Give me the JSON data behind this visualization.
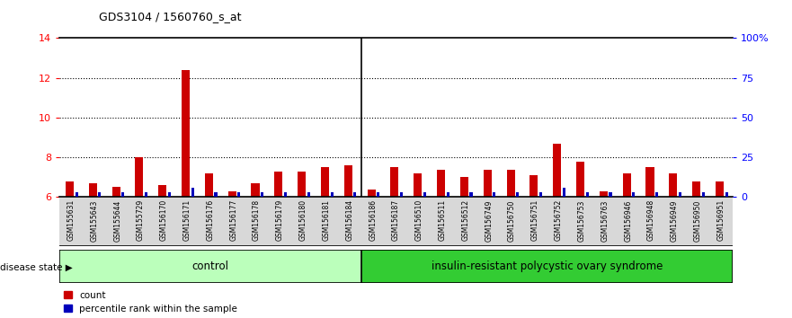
{
  "title": "GDS3104 / 1560760_s_at",
  "samples": [
    "GSM155631",
    "GSM155643",
    "GSM155644",
    "GSM155729",
    "GSM156170",
    "GSM156171",
    "GSM156176",
    "GSM156177",
    "GSM156178",
    "GSM156179",
    "GSM156180",
    "GSM156181",
    "GSM156184",
    "GSM156186",
    "GSM156187",
    "GSM156510",
    "GSM156511",
    "GSM156512",
    "GSM156749",
    "GSM156750",
    "GSM156751",
    "GSM156752",
    "GSM156753",
    "GSM156763",
    "GSM156946",
    "GSM156948",
    "GSM156949",
    "GSM156950",
    "GSM156951"
  ],
  "counts": [
    6.8,
    6.7,
    6.5,
    8.0,
    6.6,
    12.4,
    7.2,
    6.3,
    6.7,
    7.3,
    7.3,
    7.5,
    7.6,
    6.4,
    7.5,
    7.2,
    7.4,
    7.0,
    7.4,
    7.4,
    7.1,
    8.7,
    7.8,
    6.3,
    7.2,
    7.5,
    7.2,
    6.8,
    6.8
  ],
  "percentile_ranks": [
    3,
    3,
    3,
    3,
    3,
    6,
    3,
    3,
    3,
    3,
    3,
    3,
    3,
    3,
    3,
    3,
    3,
    3,
    3,
    3,
    3,
    6,
    3,
    3,
    3,
    3,
    3,
    3,
    3
  ],
  "control_count": 13,
  "disease_count": 16,
  "ylim_left": [
    6,
    14
  ],
  "ylim_right": [
    0,
    100
  ],
  "yticks_left": [
    6,
    8,
    10,
    12,
    14
  ],
  "yticks_right": [
    0,
    25,
    50,
    75,
    100
  ],
  "ytick_labels_right": [
    "0",
    "25",
    "50",
    "75",
    "100%"
  ],
  "control_label": "control",
  "disease_label": "insulin-resistant polycystic ovary syndrome",
  "disease_state_label": "disease state",
  "legend_count_label": "count",
  "legend_pct_label": "percentile rank within the sample",
  "bar_color_red": "#cc0000",
  "bar_color_blue": "#0000bb",
  "control_bg": "#bbffbb",
  "disease_bg": "#33cc33",
  "bg_white": "#ffffff",
  "xtick_bg": "#d8d8d8",
  "grid_color": "#000000"
}
